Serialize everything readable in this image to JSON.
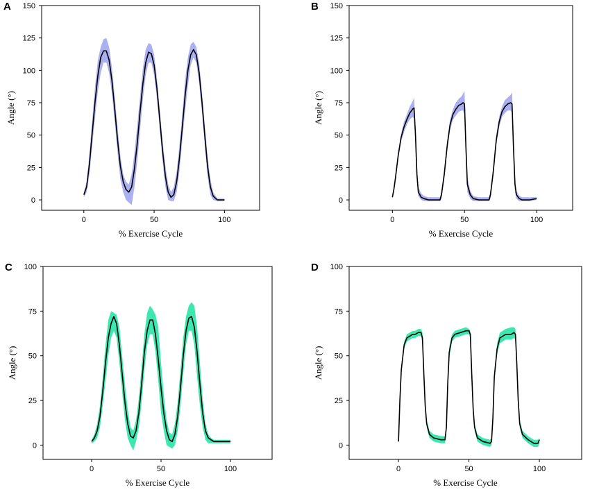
{
  "chart_data": [
    {
      "panel": "A",
      "type": "line",
      "xlabel": "% Exercise Cycle",
      "ylabel": "Angle (°)",
      "xticks": [
        0,
        50,
        100
      ],
      "yticks": [
        0,
        25,
        50,
        75,
        100,
        125,
        150
      ],
      "xlim": [
        -30,
        125
      ],
      "ylim": [
        -8,
        150
      ],
      "band_color": "#aab0f0",
      "line_color": "#000000",
      "x": [
        0,
        2,
        4,
        6,
        8,
        10,
        12,
        14,
        16,
        18,
        20,
        22,
        24,
        26,
        28,
        30,
        32,
        34,
        36,
        38,
        40,
        42,
        44,
        46,
        48,
        50,
        52,
        54,
        56,
        58,
        60,
        62,
        64,
        66,
        68,
        70,
        72,
        74,
        76,
        78,
        80,
        82,
        84,
        86,
        88,
        90,
        92,
        95,
        100
      ],
      "mean": [
        4,
        10,
        28,
        52,
        76,
        96,
        110,
        115,
        115,
        108,
        92,
        70,
        46,
        26,
        14,
        8,
        6,
        10,
        24,
        44,
        68,
        90,
        106,
        114,
        113,
        104,
        86,
        62,
        38,
        18,
        6,
        2,
        4,
        14,
        32,
        56,
        80,
        100,
        112,
        116,
        112,
        98,
        76,
        50,
        26,
        10,
        3,
        0,
        0
      ],
      "upper": [
        6,
        14,
        36,
        62,
        88,
        108,
        118,
        124,
        125,
        118,
        102,
        80,
        56,
        34,
        20,
        14,
        12,
        20,
        36,
        58,
        80,
        102,
        116,
        121,
        120,
        112,
        94,
        70,
        46,
        26,
        12,
        6,
        10,
        22,
        42,
        66,
        92,
        110,
        120,
        122,
        118,
        106,
        84,
        58,
        34,
        16,
        6,
        1,
        1
      ],
      "lower": [
        2,
        6,
        20,
        42,
        64,
        84,
        98,
        106,
        106,
        98,
        82,
        60,
        36,
        16,
        6,
        0,
        -2,
        -4,
        10,
        30,
        54,
        78,
        96,
        106,
        106,
        96,
        78,
        54,
        30,
        10,
        0,
        -1,
        -1,
        6,
        22,
        46,
        68,
        88,
        104,
        110,
        106,
        90,
        68,
        42,
        18,
        4,
        0,
        -1,
        -1
      ]
    },
    {
      "panel": "B",
      "type": "line",
      "xlabel": "% Exercise Cycle",
      "ylabel": "Angle (°)",
      "xticks": [
        0,
        50,
        100
      ],
      "yticks": [
        0,
        25,
        50,
        75,
        100,
        125,
        150
      ],
      "xlim": [
        -30,
        125
      ],
      "ylim": [
        -8,
        150
      ],
      "band_color": "#aab0f0",
      "line_color": "#000000",
      "x": [
        0,
        1,
        2,
        4,
        6,
        8,
        10,
        12,
        14,
        15,
        16,
        17,
        18,
        20,
        22,
        25,
        30,
        33,
        34,
        36,
        38,
        40,
        42,
        44,
        46,
        48,
        49,
        50,
        51,
        52,
        54,
        56,
        60,
        65,
        67,
        68,
        70,
        72,
        74,
        76,
        78,
        80,
        82,
        83,
        84,
        85,
        86,
        88,
        90,
        95,
        100
      ],
      "mean": [
        2,
        8,
        16,
        34,
        48,
        56,
        62,
        67,
        70,
        71,
        50,
        20,
        6,
        2,
        1,
        0,
        0,
        0,
        4,
        20,
        42,
        58,
        66,
        70,
        73,
        74,
        75,
        74,
        40,
        12,
        4,
        1,
        0,
        0,
        0,
        4,
        22,
        46,
        60,
        68,
        72,
        74,
        75,
        74,
        40,
        12,
        4,
        1,
        0,
        0,
        1
      ],
      "upper": [
        3,
        10,
        19,
        37,
        51,
        60,
        66,
        72,
        76,
        79,
        56,
        26,
        10,
        5,
        3,
        2,
        2,
        2,
        7,
        24,
        46,
        62,
        70,
        75,
        78,
        80,
        82,
        84,
        48,
        18,
        7,
        3,
        2,
        2,
        2,
        7,
        26,
        50,
        64,
        72,
        77,
        79,
        81,
        83,
        48,
        18,
        7,
        3,
        2,
        2,
        2
      ],
      "lower": [
        1,
        6,
        13,
        31,
        45,
        52,
        58,
        62,
        64,
        63,
        42,
        14,
        3,
        0,
        -1,
        -1,
        -1,
        -1,
        1,
        16,
        38,
        54,
        62,
        65,
        68,
        69,
        69,
        66,
        32,
        6,
        1,
        -1,
        -1,
        -1,
        -1,
        1,
        18,
        42,
        56,
        64,
        67,
        69,
        69,
        67,
        32,
        6,
        1,
        -1,
        -1,
        -1,
        0
      ]
    },
    {
      "panel": "C",
      "type": "line",
      "xlabel": "% Exercise Cycle",
      "ylabel": "Angle (°)",
      "xticks": [
        0,
        50,
        100
      ],
      "yticks": [
        0,
        25,
        50,
        75,
        100
      ],
      "xlim": [
        -35,
        130
      ],
      "ylim": [
        -8,
        100
      ],
      "band_color": "#3de8b0",
      "line_color": "#000000",
      "x": [
        0,
        2,
        4,
        6,
        8,
        10,
        12,
        14,
        16,
        18,
        20,
        22,
        24,
        26,
        28,
        30,
        32,
        34,
        36,
        38,
        40,
        42,
        44,
        46,
        48,
        50,
        52,
        54,
        56,
        58,
        60,
        62,
        64,
        66,
        68,
        70,
        72,
        74,
        76,
        78,
        80,
        82,
        84,
        86,
        88,
        90,
        92,
        95,
        100
      ],
      "mean": [
        2,
        4,
        8,
        16,
        30,
        46,
        60,
        68,
        72,
        68,
        56,
        40,
        24,
        12,
        5,
        4,
        8,
        18,
        34,
        52,
        64,
        70,
        70,
        62,
        48,
        32,
        18,
        8,
        3,
        2,
        6,
        16,
        32,
        50,
        64,
        71,
        72,
        66,
        52,
        34,
        18,
        8,
        4,
        3,
        2,
        2,
        2,
        2,
        2
      ],
      "upper": [
        3,
        6,
        12,
        22,
        38,
        56,
        70,
        75,
        74,
        73,
        66,
        50,
        34,
        20,
        10,
        8,
        14,
        26,
        44,
        62,
        74,
        78,
        76,
        73,
        66,
        46,
        28,
        14,
        7,
        6,
        12,
        24,
        42,
        60,
        72,
        78,
        80,
        78,
        66,
        46,
        26,
        12,
        6,
        4,
        3,
        3,
        3,
        3,
        3
      ],
      "lower": [
        1,
        2,
        4,
        10,
        22,
        36,
        50,
        60,
        64,
        60,
        46,
        30,
        14,
        4,
        0,
        -3,
        2,
        10,
        24,
        42,
        56,
        62,
        62,
        52,
        36,
        18,
        8,
        0,
        -1,
        -2,
        0,
        8,
        22,
        40,
        56,
        64,
        64,
        56,
        38,
        22,
        10,
        3,
        1,
        1,
        1,
        1,
        1,
        1,
        1
      ]
    },
    {
      "panel": "D",
      "type": "line",
      "xlabel": "% Exercise Cycle",
      "ylabel": "Angle (°)",
      "xticks": [
        0,
        50,
        100
      ],
      "yticks": [
        0,
        25,
        50,
        75,
        100
      ],
      "xlim": [
        -35,
        130
      ],
      "ylim": [
        -8,
        100
      ],
      "band_color": "#3de8b0",
      "line_color": "#000000",
      "x": [
        0,
        1,
        2,
        4,
        6,
        8,
        10,
        12,
        14,
        16,
        17,
        18,
        19,
        20,
        22,
        25,
        30,
        33,
        34,
        35,
        36,
        38,
        40,
        44,
        48,
        50,
        51,
        52,
        53,
        54,
        56,
        60,
        65,
        66,
        67,
        68,
        70,
        72,
        76,
        80,
        82,
        83,
        84,
        85,
        86,
        88,
        92,
        96,
        99,
        100
      ],
      "mean": [
        2,
        25,
        42,
        56,
        60,
        61,
        62,
        62,
        63,
        63,
        60,
        40,
        22,
        12,
        6,
        4,
        3,
        3,
        10,
        35,
        52,
        60,
        62,
        63,
        64,
        64,
        62,
        40,
        20,
        10,
        4,
        2,
        1,
        2,
        15,
        38,
        54,
        60,
        62,
        62,
        63,
        62,
        45,
        25,
        12,
        6,
        3,
        1,
        1,
        3
      ],
      "upper": [
        3,
        27,
        44,
        58,
        62,
        63,
        64,
        64,
        65,
        65,
        63,
        43,
        25,
        14,
        8,
        6,
        5,
        5,
        13,
        38,
        55,
        62,
        64,
        65,
        66,
        65,
        64,
        43,
        23,
        12,
        6,
        4,
        3,
        4,
        18,
        41,
        57,
        63,
        65,
        66,
        66,
        65,
        48,
        28,
        14,
        8,
        5,
        3,
        3,
        4
      ],
      "lower": [
        1,
        23,
        40,
        54,
        58,
        59,
        60,
        60,
        61,
        61,
        57,
        37,
        19,
        10,
        4,
        2,
        1,
        1,
        7,
        32,
        49,
        58,
        60,
        61,
        62,
        62,
        60,
        37,
        17,
        8,
        2,
        0,
        -1,
        0,
        12,
        35,
        51,
        57,
        59,
        59,
        60,
        59,
        42,
        22,
        10,
        4,
        1,
        -1,
        -1,
        1
      ]
    }
  ]
}
